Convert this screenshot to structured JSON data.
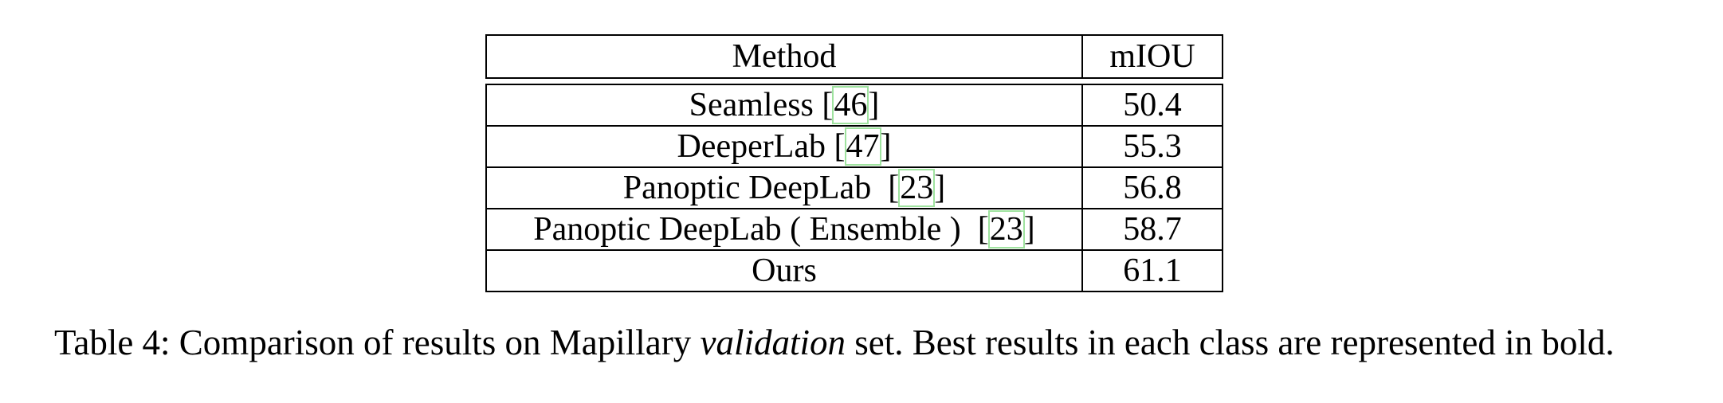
{
  "table": {
    "header": {
      "method": "Method",
      "miou": "mIOU"
    },
    "rows": [
      {
        "method": "Seamless",
        "cite": "46",
        "miou": "50.4",
        "best": false
      },
      {
        "method": "DeeperLab",
        "cite": "47",
        "miou": "55.3",
        "best": false
      },
      {
        "method": "Panoptic DeepLab ",
        "cite": "23",
        "miou": "56.8",
        "best": false
      },
      {
        "method": "Panoptic DeepLab ( Ensemble ) ",
        "cite": "23",
        "miou": "58.7",
        "best": false
      },
      {
        "method": "Ours",
        "cite": "",
        "miou": "61.1",
        "best": true
      }
    ]
  },
  "caption": {
    "prefix": "Table 4: Comparison of results on Mapillary ",
    "italic": "validation",
    "suffix": " set. Best results in each class are represented in bold."
  }
}
